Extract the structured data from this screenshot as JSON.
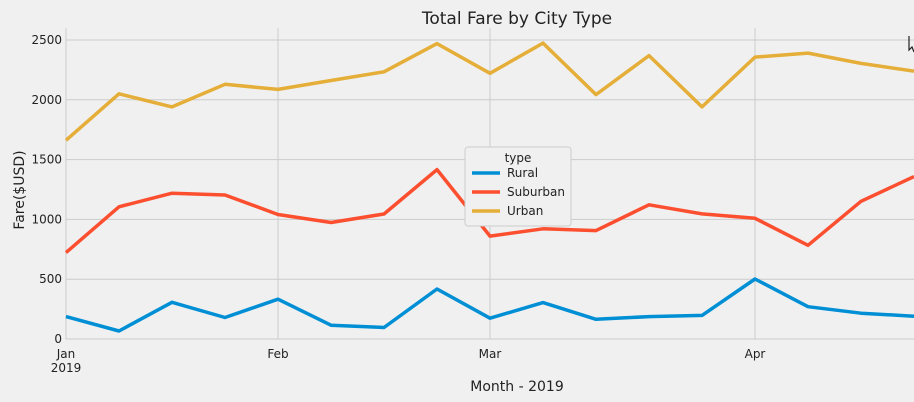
{
  "chart_data": {
    "type": "line",
    "title": "Total Fare by City Type",
    "xlabel": "Month - 2019",
    "ylabel": "Fare($USD)",
    "x": [
      "2019-01-06",
      "2019-01-13",
      "2019-01-20",
      "2019-01-27",
      "2019-02-03",
      "2019-02-10",
      "2019-02-17",
      "2019-02-24",
      "2019-03-03",
      "2019-03-10",
      "2019-03-17",
      "2019-03-24",
      "2019-03-31",
      "2019-04-07",
      "2019-04-14",
      "2019-04-21",
      "2019-04-28"
    ],
    "xlim": [
      "2019-01-06",
      "2019-04-28"
    ],
    "ylim": [
      0,
      2600
    ],
    "y_ticks": [
      0,
      500,
      1000,
      1500,
      2000,
      2500
    ],
    "x_ticks": [
      {
        "date": "2019-01-06",
        "label": "Jan",
        "sublabel": "2019"
      },
      {
        "date": "2019-02-03",
        "label": "Feb",
        "sublabel": ""
      },
      {
        "date": "2019-03-03",
        "label": "Mar",
        "sublabel": ""
      },
      {
        "date": "2019-04-07",
        "label": "Apr",
        "sublabel": ""
      }
    ],
    "grid": true,
    "legend": {
      "title": "type",
      "placement": "center"
    },
    "series": [
      {
        "name": "Rural",
        "color": "#008fd5",
        "values": [
          187,
          67,
          307,
          180,
          333,
          115,
          96,
          418,
          174,
          304,
          165,
          187,
          197,
          502,
          270,
          216,
          191
        ]
      },
      {
        "name": "Suburban",
        "color": "#fc4f30",
        "values": [
          722,
          1105,
          1219,
          1204,
          1041,
          974,
          1045,
          1416,
          860,
          921,
          906,
          1122,
          1046,
          1009,
          783,
          1151,
          1358
        ]
      },
      {
        "name": "Urban",
        "color": "#e5ae38",
        "values": [
          1661,
          2050,
          1940,
          2129,
          2087,
          2161,
          2234,
          2470,
          2221,
          2474,
          2043,
          2369,
          1940,
          2357,
          2390,
          2304,
          2240
        ]
      }
    ]
  },
  "icons": {
    "cursor": "mouse-cursor-icon"
  }
}
